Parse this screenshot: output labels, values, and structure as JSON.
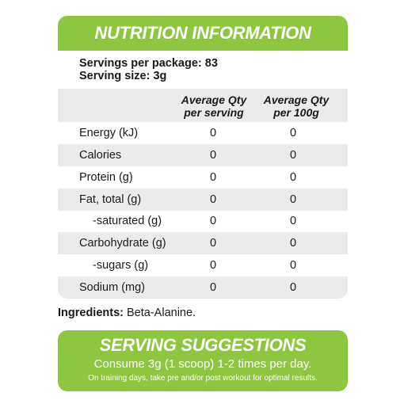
{
  "nutrition": {
    "title": "NUTRITION INFORMATION",
    "servings_per_package": "Servings per package: 83",
    "serving_size": "Serving size: 3g",
    "columns": {
      "per_serving": [
        "Average Qty",
        "per serving"
      ],
      "per_100g": [
        "Average Qty",
        "per 100g"
      ]
    },
    "rows": [
      {
        "label": "Energy (kJ)",
        "per_serving": "0",
        "per_100g": "0"
      },
      {
        "label": "Calories",
        "per_serving": "0",
        "per_100g": "0"
      },
      {
        "label": "Protein (g)",
        "per_serving": "0",
        "per_100g": "0"
      },
      {
        "label": "Fat, total (g)",
        "per_serving": "0",
        "per_100g": "0"
      },
      {
        "label": "-saturated (g)",
        "per_serving": "0",
        "per_100g": "0"
      },
      {
        "label": "Carbohydrate (g)",
        "per_serving": "0",
        "per_100g": "0"
      },
      {
        "label": "-sugars (g)",
        "per_serving": "0",
        "per_100g": "0"
      },
      {
        "label": "Sodium (mg)",
        "per_serving": "0",
        "per_100g": "0"
      }
    ]
  },
  "ingredients": {
    "label": "Ingredients:",
    "value": " Beta-Alanine."
  },
  "serving_suggestions": {
    "title": "SERVING SUGGESTIONS",
    "line1": "Consume 3g (1 scoop) 1-2 times per day.",
    "line2": "On training days, take pre and/or post workout for optimal results."
  },
  "colors": {
    "accent_green": "#8dc63f",
    "row_shade": "#ebebeb",
    "text": "#1a1a1a"
  }
}
